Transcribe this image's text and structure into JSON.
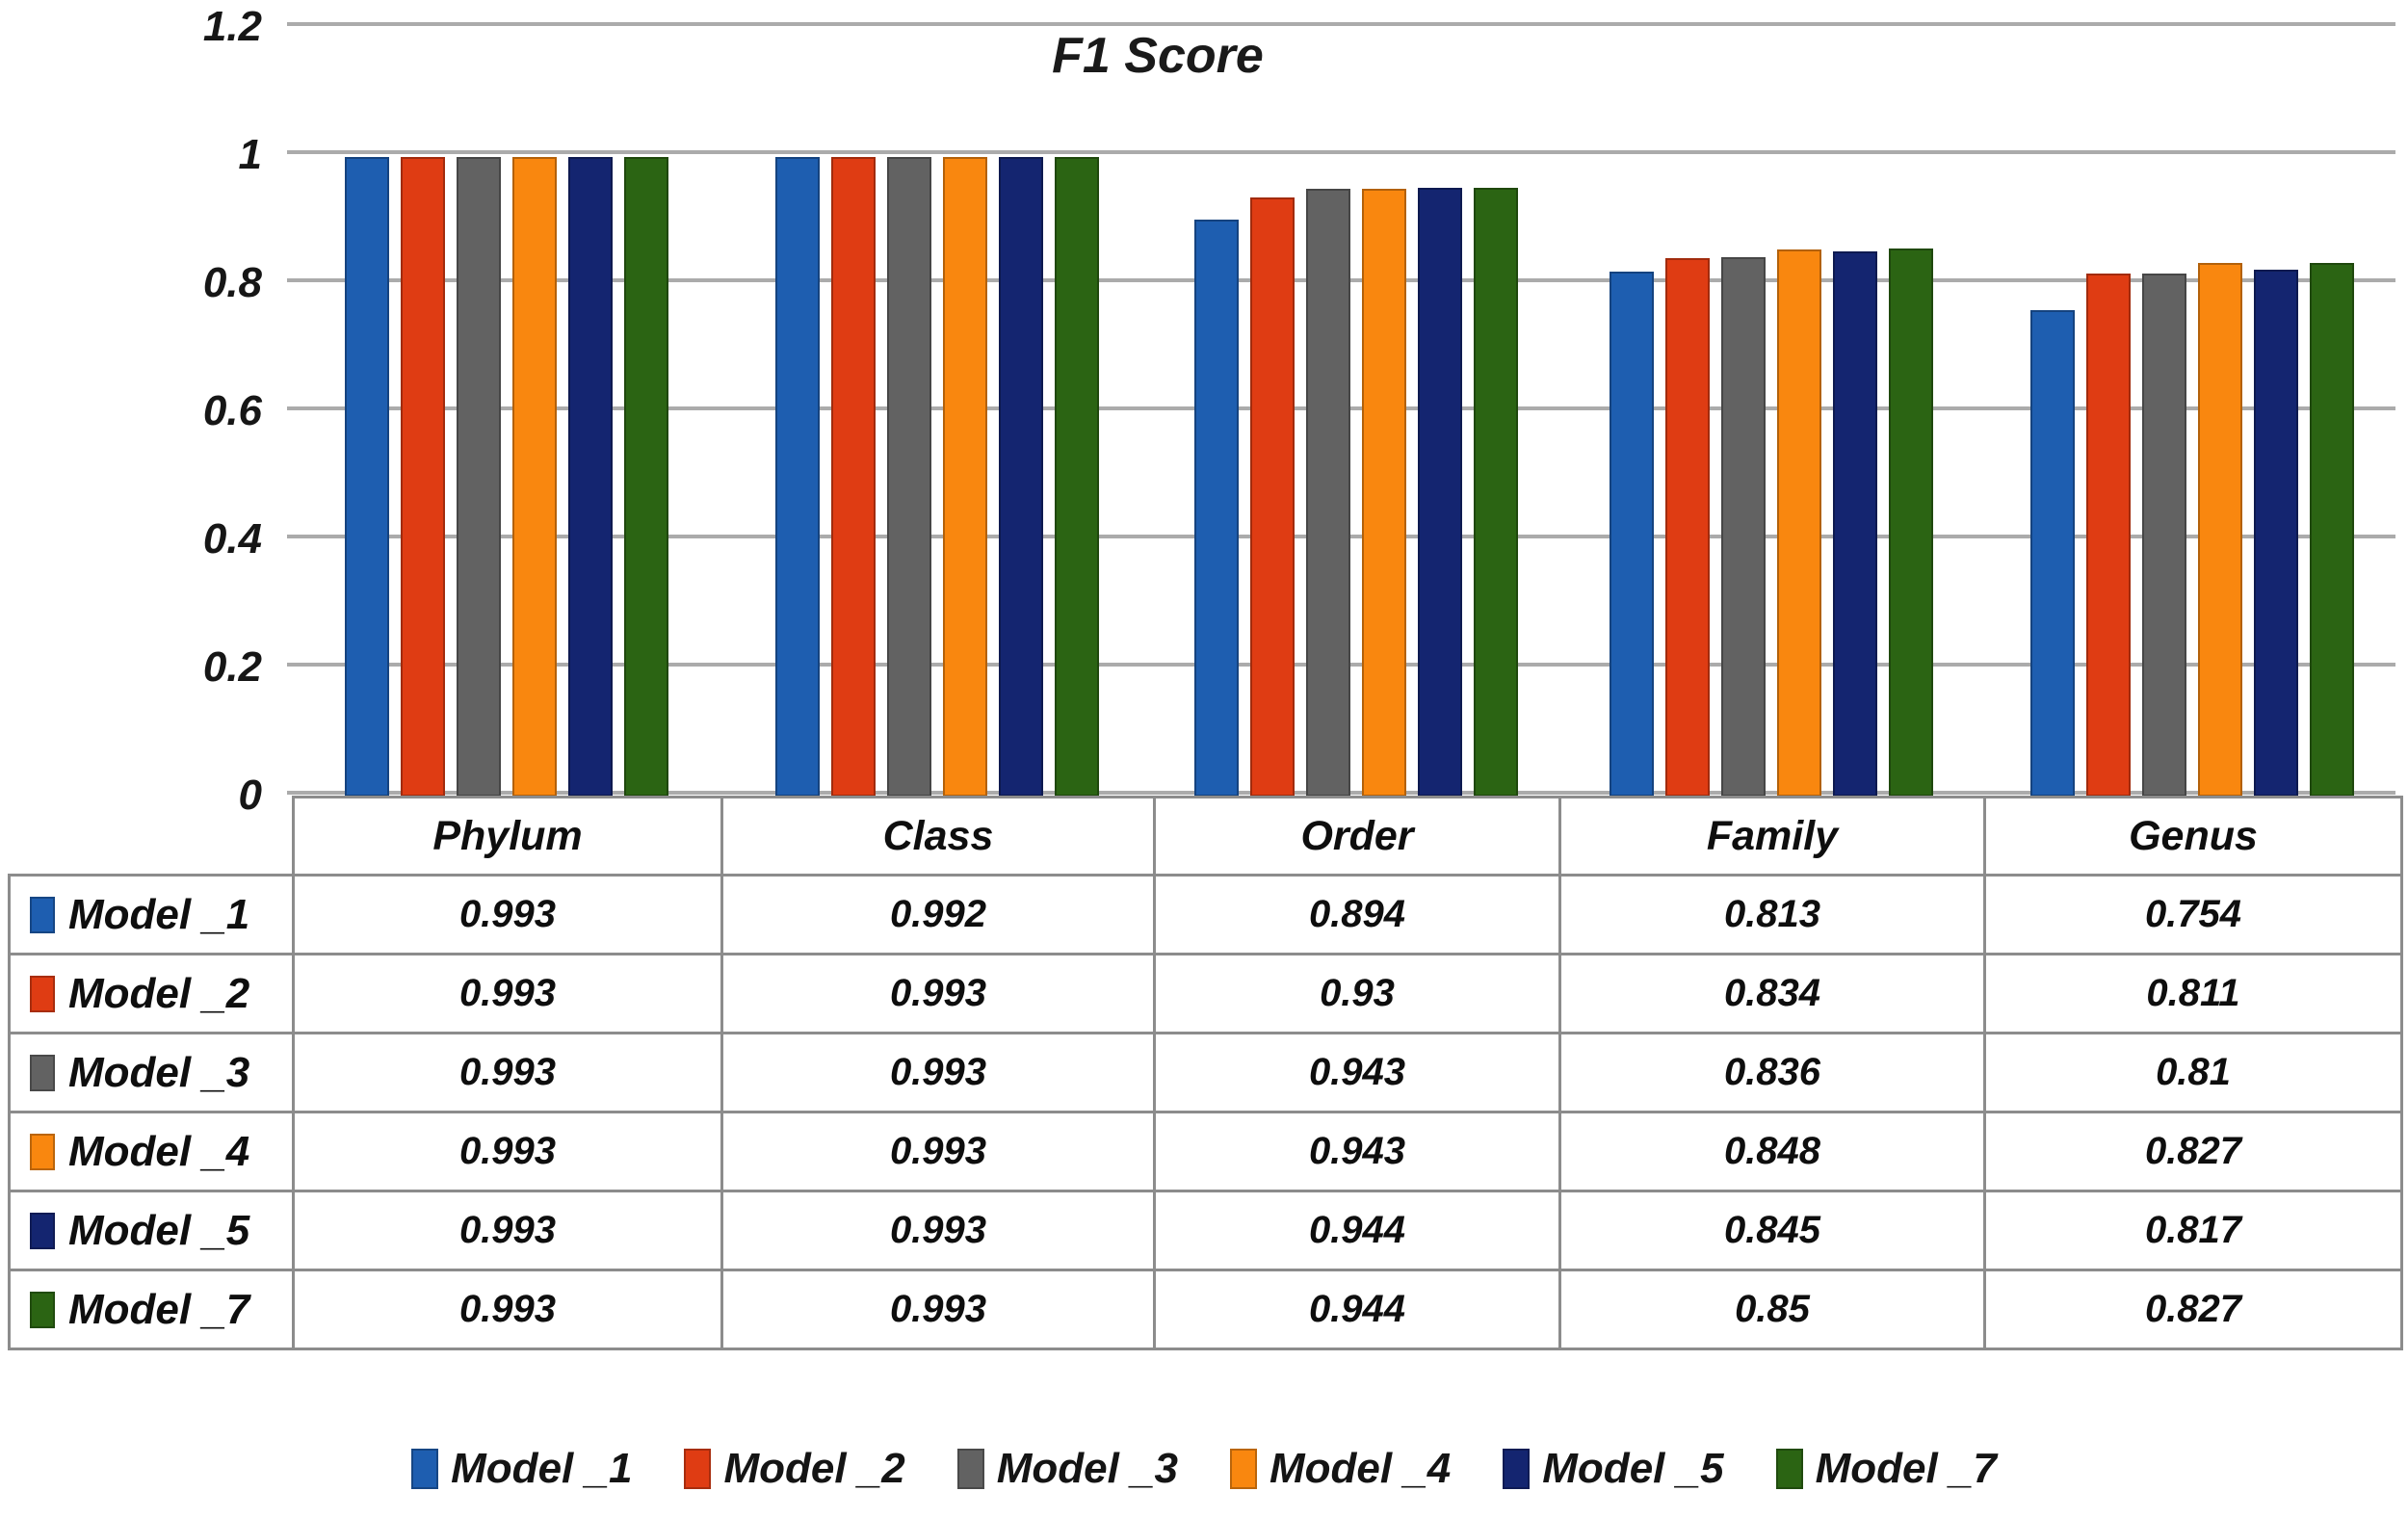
{
  "chart_data": {
    "type": "bar",
    "title": "F1 Score",
    "categories": [
      "Phylum",
      "Class",
      "Order",
      "Family",
      "Genus"
    ],
    "series": [
      {
        "name": "Model _1",
        "color": "#1E5EB0",
        "values": [
          0.993,
          0.992,
          0.894,
          0.813,
          0.754
        ]
      },
      {
        "name": "Model _2",
        "color": "#DF3C13",
        "values": [
          0.993,
          0.993,
          0.93,
          0.834,
          0.811
        ]
      },
      {
        "name": "Model _3",
        "color": "#626262",
        "values": [
          0.993,
          0.993,
          0.943,
          0.836,
          0.81
        ]
      },
      {
        "name": "Model _4",
        "color": "#F9870F",
        "values": [
          0.993,
          0.993,
          0.943,
          0.848,
          0.827
        ]
      },
      {
        "name": "Model _5",
        "color": "#142570",
        "values": [
          0.993,
          0.993,
          0.944,
          0.845,
          0.817
        ]
      },
      {
        "name": "Model _7",
        "color": "#2B6413",
        "values": [
          0.993,
          0.993,
          0.944,
          0.85,
          0.827
        ]
      }
    ],
    "ylim": [
      0,
      1.2
    ],
    "y_ticks": [
      {
        "label": "1.2",
        "value": 1.2
      },
      {
        "label": "1",
        "value": 1
      },
      {
        "label": "0.8",
        "value": 0.8
      },
      {
        "label": "0.6",
        "value": 0.6
      },
      {
        "label": "0.4",
        "value": 0.4
      },
      {
        "label": "0.2",
        "value": 0.2
      },
      {
        "label": "0",
        "value": 0
      }
    ],
    "grid": true,
    "legend_position": "bottom"
  },
  "table": {
    "column_headers": [
      "Phylum",
      "Class",
      "Order",
      "Family",
      "Genus"
    ],
    "rows": [
      {
        "label": "Model _1",
        "color": "#1E5EB0",
        "values": [
          "0.993",
          "0.992",
          "0.894",
          "0.813",
          "0.754"
        ]
      },
      {
        "label": "Model _2",
        "color": "#DF3C13",
        "values": [
          "0.993",
          "0.993",
          "0.93",
          "0.834",
          "0.811"
        ]
      },
      {
        "label": "Model _3",
        "color": "#626262",
        "values": [
          "0.993",
          "0.993",
          "0.943",
          "0.836",
          "0.81"
        ]
      },
      {
        "label": "Model _4",
        "color": "#F9870F",
        "values": [
          "0.993",
          "0.993",
          "0.943",
          "0.848",
          "0.827"
        ]
      },
      {
        "label": "Model _5",
        "color": "#142570",
        "values": [
          "0.993",
          "0.993",
          "0.944",
          "0.845",
          "0.817"
        ]
      },
      {
        "label": "Model _7",
        "color": "#2B6413",
        "values": [
          "0.993",
          "0.993",
          "0.944",
          "0.85",
          "0.827"
        ]
      }
    ]
  },
  "legend": {
    "items": [
      {
        "label": "Model _1",
        "color": "#1E5EB0"
      },
      {
        "label": "Model _2",
        "color": "#DF3C13"
      },
      {
        "label": "Model _3",
        "color": "#626262"
      },
      {
        "label": "Model _4",
        "color": "#F9870F"
      },
      {
        "label": "Model _5",
        "color": "#142570"
      },
      {
        "label": "Model _7",
        "color": "#2B6413"
      }
    ]
  }
}
